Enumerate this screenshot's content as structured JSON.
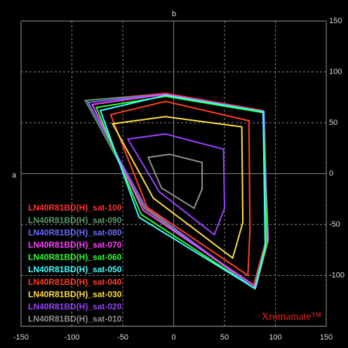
{
  "chart_data": {
    "type": "polygon",
    "x_label": "a",
    "y_label": "b",
    "annotation": "Xromamate™",
    "xlim": [
      -150,
      150
    ],
    "ylim": [
      -150,
      150
    ],
    "xticks": [
      -150,
      -100,
      -50,
      0,
      50,
      100,
      150
    ],
    "yticks": [
      -100,
      -50,
      0,
      50,
      100,
      150
    ],
    "grid": true,
    "legend": "lower left",
    "series": [
      {
        "name": "LN40R81BD(H)_sat-100",
        "color": "#ff3030",
        "x": [
          -8,
          88,
          90,
          78,
          -28,
          -85
        ],
        "values": [
          79,
          62,
          -68,
          -112,
          -33,
          72
        ]
      },
      {
        "name": "LN40R81BD(H)_sat-090",
        "color": "#5a9a6a",
        "x": [
          -8,
          88,
          91,
          79,
          -29,
          -87
        ],
        "values": [
          78,
          61,
          -67,
          -112,
          -34,
          72
        ]
      },
      {
        "name": "LN40R81BD(H)_sat-080",
        "color": "#6868ff",
        "x": [
          -8,
          89,
          92,
          80,
          -28,
          -84
        ],
        "values": [
          78,
          61,
          -66,
          -113,
          -32,
          70
        ]
      },
      {
        "name": "LN40R81BD(H)_sat-070",
        "color": "#ff40ff",
        "x": [
          -8,
          88,
          93,
          81,
          -30,
          -80
        ],
        "values": [
          78,
          60,
          -65,
          -111,
          -36,
          68
        ]
      },
      {
        "name": "LN40R81BD(H)_sat-060",
        "color": "#30ff30",
        "x": [
          -8,
          88,
          92,
          80,
          -32,
          -76
        ],
        "values": [
          76,
          60,
          -68,
          -113,
          -40,
          65
        ]
      },
      {
        "name": "LN40R81BD(H)_sat-050",
        "color": "#40ffff",
        "x": [
          -8,
          88,
          90,
          80,
          -34,
          -72
        ],
        "values": [
          77,
          61,
          -72,
          -113,
          -43,
          62
        ]
      },
      {
        "name": "LN40R81BD(H)_sat-040",
        "color": "#ff4020",
        "x": [
          -8,
          74,
          75,
          73,
          -26,
          -62
        ],
        "values": [
          71,
          52,
          -55,
          -100,
          -33,
          58
        ]
      },
      {
        "name": "LN40R81BD(H)_sat-030",
        "color": "#ffdd40",
        "x": [
          -8,
          67,
          68,
          58,
          -20,
          -60
        ],
        "values": [
          56,
          46,
          -48,
          -83,
          -24,
          49
        ]
      },
      {
        "name": "LN40R81BD(H)_sat-020",
        "color": "#9a40ff",
        "x": [
          -8,
          49,
          50,
          40,
          -14,
          -45
        ],
        "values": [
          39,
          24,
          -34,
          -60,
          -18,
          34
        ]
      },
      {
        "name": "LN40R81BD(H)_sat-010",
        "color": "#909090",
        "x": [
          -4,
          28,
          28,
          20,
          -12,
          -25
        ],
        "values": [
          19,
          11,
          -15,
          -34,
          -14,
          16
        ]
      }
    ]
  }
}
